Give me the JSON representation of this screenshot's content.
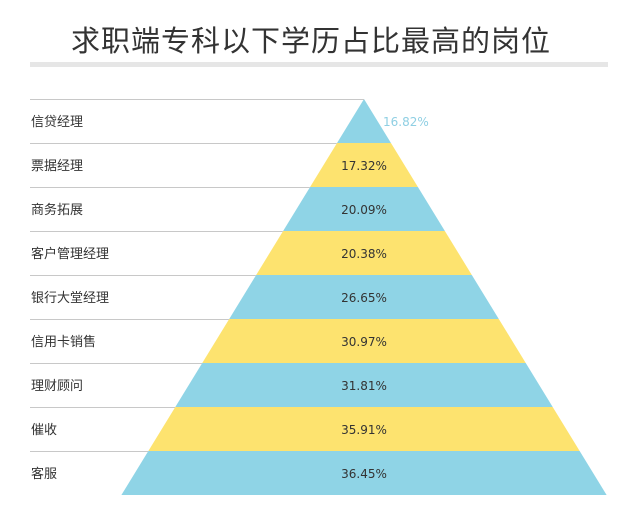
{
  "chart_data": {
    "type": "pyramid",
    "title": "求职端专科以下学历占比最高的岗位",
    "categories": [
      "信贷经理",
      "票据经理",
      "商务拓展",
      "客户管理经理",
      "银行大堂经理",
      "信用卡销售",
      "理财顾问",
      "催收",
      "客服"
    ],
    "values": [
      16.82,
      17.32,
      20.09,
      20.38,
      26.65,
      30.97,
      31.81,
      35.91,
      36.45
    ],
    "value_labels": [
      "16.82%",
      "17.32%",
      "20.09%",
      "20.38%",
      "26.65%",
      "30.97%",
      "31.81%",
      "35.91%",
      "36.45%"
    ],
    "colors": {
      "band_blue": "#8fd4e6",
      "band_yellow": "#fde36f",
      "top_label": "#8fcfe3",
      "text": "#333333",
      "rule": "#c8c8c8"
    }
  }
}
